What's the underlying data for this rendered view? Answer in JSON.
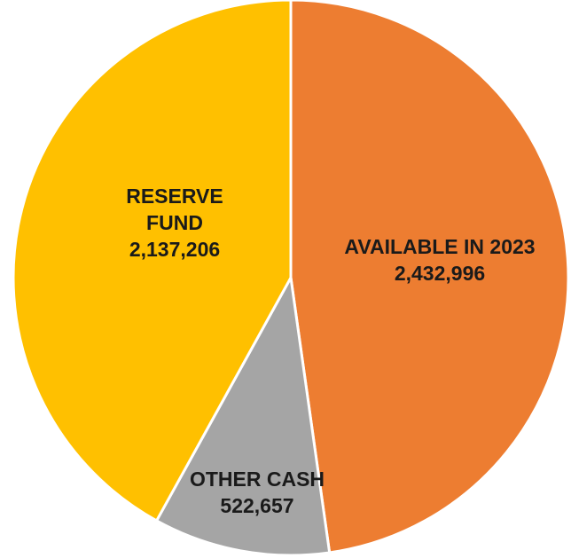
{
  "chart_data": {
    "type": "pie",
    "title": "",
    "start_angle_deg": 0,
    "direction": "clockwise",
    "slices": [
      {
        "name": "AVAILABLE IN 2023",
        "value": 2432996,
        "value_label": "2,432,996",
        "color": "#ED7D31",
        "label_lines": [
          "AVAILABLE IN 2023"
        ]
      },
      {
        "name": "OTHER CASH",
        "value": 522657,
        "value_label": "522,657",
        "color": "#A5A5A5",
        "label_lines": [
          "OTHER CASH"
        ]
      },
      {
        "name": "RESERVE FUND",
        "value": 2137206,
        "value_label": "2,137,206",
        "color": "#FFC000",
        "label_lines": [
          "RESERVE",
          "FUND"
        ]
      }
    ]
  }
}
